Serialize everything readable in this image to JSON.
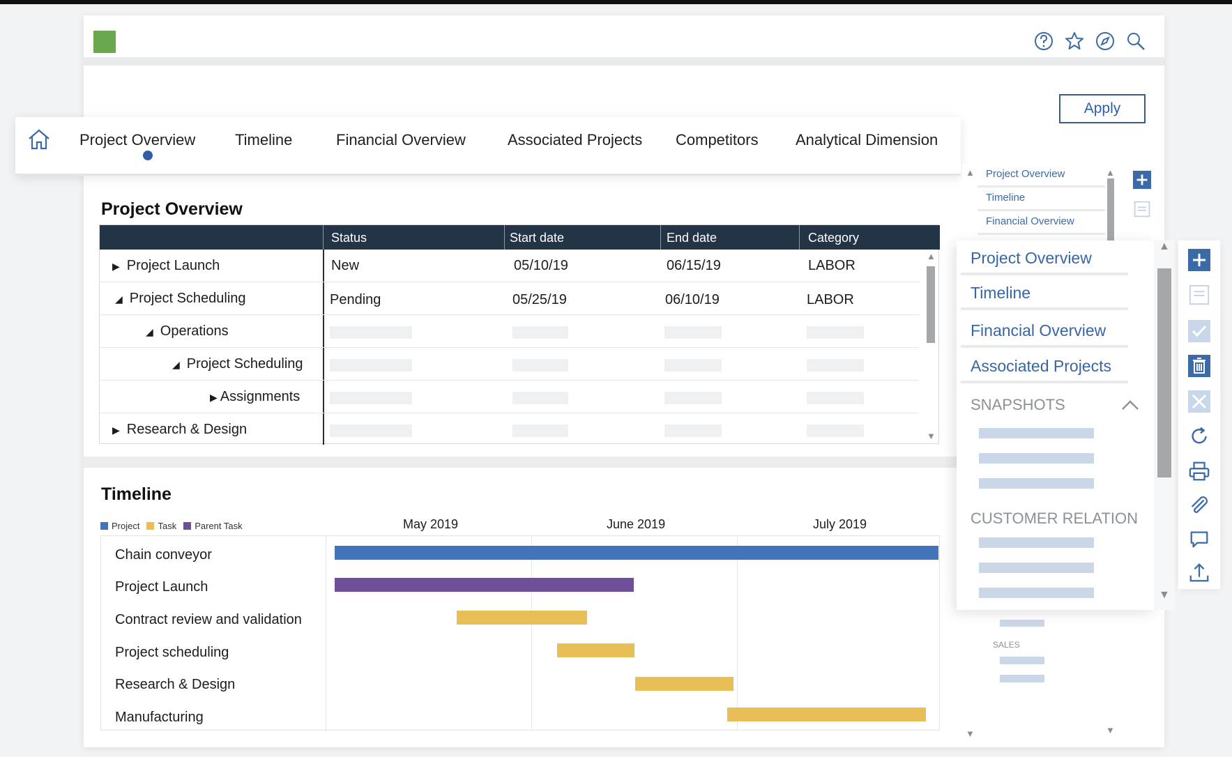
{
  "header": {
    "icons": [
      "help-icon",
      "star-icon",
      "compass-icon",
      "search-icon"
    ],
    "apply_label": "Apply"
  },
  "tabs": [
    {
      "label": "Project Overview",
      "active": true
    },
    {
      "label": "Timeline"
    },
    {
      "label": "Financial Overview"
    },
    {
      "label": "Associated Projects"
    },
    {
      "label": "Competitors"
    },
    {
      "label": "Analytical Dimension"
    }
  ],
  "overview": {
    "title": "Project Overview",
    "columns": [
      "Status",
      "Start date",
      "End date",
      "Category"
    ],
    "rows": [
      {
        "label": "Project Launch",
        "expander": "collapsed",
        "status": "New",
        "start": "05/10/19",
        "end": "06/15/19",
        "category": "LABOR"
      },
      {
        "label": "Project Scheduling",
        "expander": "expanded",
        "status": "Pending",
        "start": "05/25/19",
        "end": "06/10/19",
        "category": "LABOR"
      },
      {
        "label": "Operations",
        "expander": "expanded"
      },
      {
        "label": "Project Scheduling",
        "expander": "expanded"
      },
      {
        "label": "Assignments",
        "expander": "collapsed"
      },
      {
        "label": "Research & Design",
        "expander": "collapsed"
      }
    ]
  },
  "timeline": {
    "title": "Timeline",
    "legend": [
      {
        "label": "Project",
        "color": "#4474b8"
      },
      {
        "label": "Task",
        "color": "#e8bf56"
      },
      {
        "label": "Parent Task",
        "color": "#6f4f98"
      }
    ],
    "months": [
      "May 2019",
      "June 2019",
      "July 2019"
    ],
    "rows": [
      "Chain conveyor",
      "Project Launch",
      "Contract review and validation",
      "Project scheduling",
      "Research & Design",
      "Manufacturing"
    ]
  },
  "right_panel_back": {
    "items": [
      "Project Overview",
      "Timeline",
      "Financial Overview"
    ],
    "section_label": "SALES"
  },
  "right_panel_front": {
    "items": [
      "Project Overview",
      "Timeline",
      "Financial Overview",
      "Associated Projects"
    ],
    "sections": [
      "SNAPSHOTS",
      "CUSTOMER RELATION"
    ]
  },
  "toolbar_icons": [
    "add-icon",
    "document-icon",
    "check-icon",
    "trash-icon",
    "close-icon",
    "refresh-icon",
    "print-icon",
    "attach-icon",
    "comment-icon",
    "upload-icon"
  ]
}
